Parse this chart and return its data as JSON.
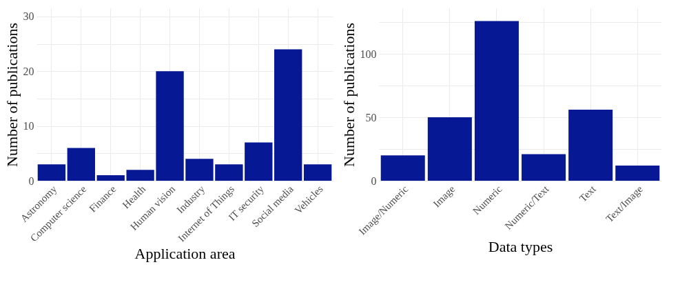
{
  "chart_data": [
    {
      "type": "bar",
      "xlabel": "Application area",
      "ylabel": "Number of publications",
      "categories": [
        "Astronomy",
        "Computer science",
        "Finance",
        "Health",
        "Human vision",
        "Industry",
        "Internet of Things",
        "IT security",
        "Social media",
        "Vehicles"
      ],
      "values": [
        3,
        6,
        1,
        2,
        20,
        4,
        3,
        7,
        24,
        3
      ],
      "color": "#061893",
      "ylim": [
        0,
        31.5
      ],
      "yticks": [
        0,
        {
          "value": 5,
          "label": null
        },
        10,
        {
          "value": 15,
          "label": null
        },
        20,
        {
          "value": 25,
          "label": null
        },
        30
      ],
      "grid": true
    },
    {
      "type": "bar",
      "xlabel": "Data types",
      "ylabel": "Number of publications",
      "categories": [
        "Image/Numeric",
        "Image",
        "Numeric",
        "Numeric/Text",
        "Text",
        "Text/Image"
      ],
      "values": [
        20,
        50,
        126,
        21,
        56,
        12
      ],
      "color": "#061893",
      "ylim": [
        0,
        136
      ],
      "yticks": [
        0,
        {
          "value": 25,
          "label": null
        },
        50,
        {
          "value": 75,
          "label": null
        },
        100,
        {
          "value": 125,
          "label": null
        }
      ],
      "grid": true
    }
  ]
}
